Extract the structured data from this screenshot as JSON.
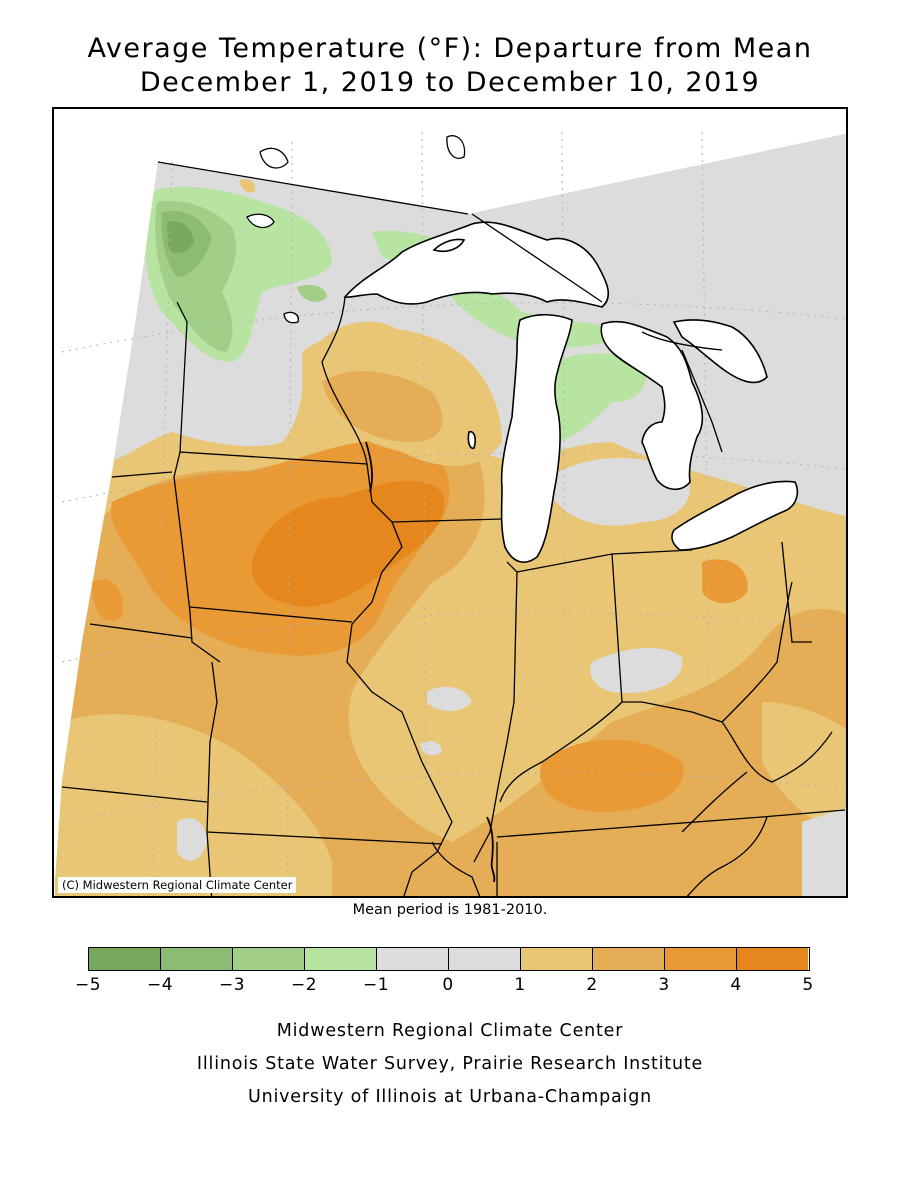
{
  "title_line1": "Average Temperature (°F): Departure from Mean",
  "title_line2": "December 1, 2019 to December 10, 2019",
  "copyright": "(C) Midwestern Regional Climate Center",
  "mean_period": "Mean period is 1981-2010.",
  "legend": {
    "colors": [
      "#78a85e",
      "#8cbc73",
      "#a2cf87",
      "#b7e4a0",
      "#dcdcdc",
      "#dcdcdc",
      "#e8c675",
      "#e5ad55",
      "#e99a35",
      "#e5871c"
    ],
    "ticks": [
      "-5",
      "-4",
      "-3",
      "-2",
      "-1",
      "0",
      "1",
      "2",
      "3",
      "4",
      "5"
    ]
  },
  "footer": {
    "line1": "Midwestern Regional Climate Center",
    "line2": "Illinois State Water Survey, Prairie Research Institute",
    "line3": "University of Illinois at Urbana-Champaign"
  },
  "map": {
    "lake_color": "#ffffff",
    "outside_color": "#ffffff"
  }
}
